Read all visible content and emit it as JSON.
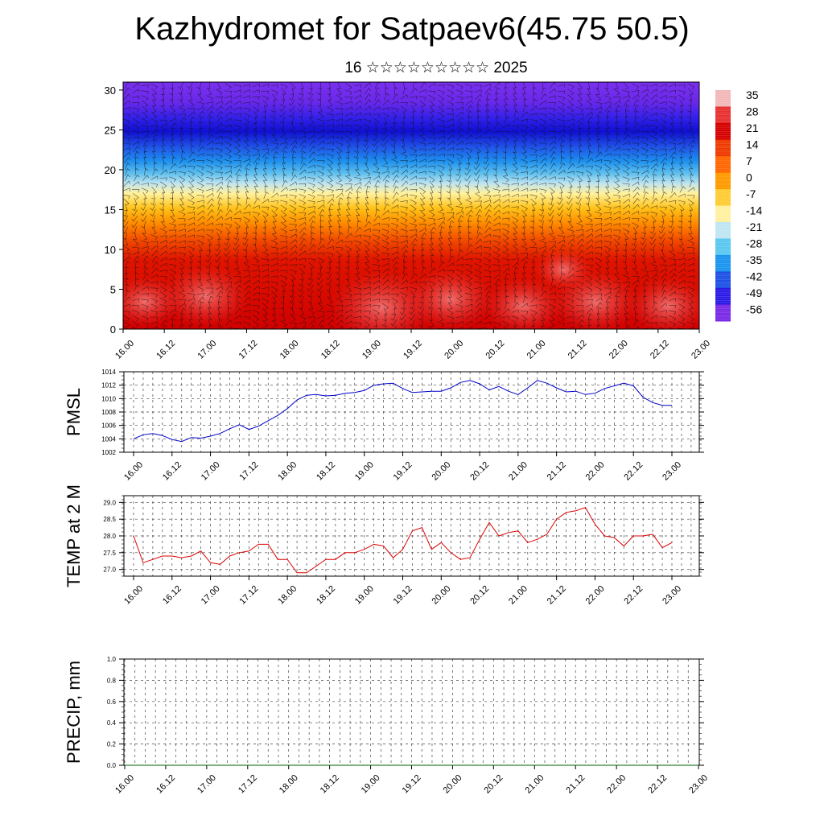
{
  "header": {
    "title": "Kazhydromet for Satpaev6(45.75 50.5)",
    "subtitle": "16 ☆☆☆☆☆☆☆☆☆ 2025"
  },
  "chart_data": [
    {
      "type": "heatmap",
      "name": "cross-section",
      "title": "",
      "x_tick_labels": [
        "16.00",
        "16.12",
        "17.00",
        "17.12",
        "18.00",
        "18.12",
        "19.00",
        "19.12",
        "20.00",
        "20.12",
        "21.00",
        "21.12",
        "22.00",
        "22.12",
        "23.00"
      ],
      "y_ticks": [
        0,
        5,
        10,
        15,
        20,
        25,
        30
      ],
      "ylim": [
        0,
        31
      ],
      "colorbar_labels": [
        "35",
        "28",
        "21",
        "14",
        "7",
        "0",
        "-7",
        "-14",
        "-21",
        "-28",
        "-35",
        "-42",
        "-49",
        "-56"
      ],
      "colorbar_colors": [
        "#f2b8b8",
        "#e83030",
        "#d60000",
        "#ee3a00",
        "#ff6600",
        "#ff9a00",
        "#ffcc33",
        "#fff0a0",
        "#bfe6f2",
        "#5ac8f0",
        "#1a94ee",
        "#1e50e6",
        "#2a1ae6",
        "#7a2ae6"
      ],
      "overlay": "wind barbs"
    },
    {
      "type": "line",
      "name": "PMSL",
      "ylabel": "PMSL",
      "x_tick_labels": [
        "16.00",
        "16.12",
        "17.00",
        "17.12",
        "18.00",
        "18.12",
        "19.00",
        "19.12",
        "20.00",
        "20.12",
        "21.00",
        "21.12",
        "22.00",
        "22.12",
        "23.00"
      ],
      "y_ticks": [
        1002,
        1004,
        1006,
        1008,
        1010,
        1012,
        1014
      ],
      "ylim": [
        1002,
        1014
      ],
      "color": "#0000cc",
      "values": [
        1004.0,
        1004.6,
        1004.8,
        1004.5,
        1003.9,
        1003.6,
        1004.2,
        1004.1,
        1004.4,
        1004.8,
        1005.5,
        1006.1,
        1005.4,
        1005.9,
        1006.7,
        1007.5,
        1008.5,
        1009.8,
        1010.5,
        1010.6,
        1010.4,
        1010.5,
        1010.8,
        1010.9,
        1011.2,
        1012.0,
        1012.2,
        1012.3,
        1011.5,
        1010.9,
        1011.0,
        1011.1,
        1011.1,
        1011.6,
        1012.4,
        1012.7,
        1012.2,
        1011.3,
        1011.8,
        1011.1,
        1010.6,
        1011.6,
        1012.7,
        1012.3,
        1011.6,
        1011.0,
        1011.1,
        1010.6,
        1010.8,
        1011.5,
        1011.9,
        1012.3,
        1011.9,
        1010.2,
        1009.4,
        1009.0,
        1009.0
      ]
    },
    {
      "type": "line",
      "name": "TEMP at 2 M",
      "ylabel": "TEMP at 2 M",
      "x_tick_labels": [
        "16.00",
        "16.12",
        "17.00",
        "17.12",
        "18.00",
        "18.12",
        "19.00",
        "19.12",
        "20.00",
        "20.12",
        "21.00",
        "21.12",
        "22.00",
        "22.12",
        "23.00"
      ],
      "y_ticks": [
        "27.0",
        "27.5",
        "28.0",
        "28.5",
        "29.0"
      ],
      "ylim": [
        26.8,
        29.2
      ],
      "color": "#dd0000",
      "values": [
        28.0,
        27.2,
        27.3,
        27.4,
        27.4,
        27.35,
        27.4,
        27.55,
        27.2,
        27.15,
        27.4,
        27.5,
        27.55,
        27.75,
        27.75,
        27.3,
        27.3,
        26.9,
        26.9,
        27.1,
        27.3,
        27.3,
        27.5,
        27.5,
        27.6,
        27.75,
        27.7,
        27.35,
        27.6,
        28.15,
        28.25,
        27.6,
        27.8,
        27.5,
        27.3,
        27.35,
        27.9,
        28.4,
        28.0,
        28.1,
        28.15,
        27.8,
        27.9,
        28.05,
        28.5,
        28.7,
        28.75,
        28.85,
        28.35,
        28.0,
        27.95,
        27.7,
        28.0,
        28.0,
        28.05,
        27.65,
        27.8
      ]
    },
    {
      "type": "line",
      "name": "PRECIP, mm",
      "ylabel": "PRECIP, mm",
      "x_tick_labels": [
        "16.00",
        "16.12",
        "17.00",
        "17.12",
        "18.00",
        "18.12",
        "19.00",
        "19.12",
        "20.00",
        "20.12",
        "21.00",
        "21.12",
        "22.00",
        "22.12",
        "23.00"
      ],
      "y_ticks": [
        "0.0",
        "0.2",
        "0.4",
        "0.6",
        "0.8",
        "1.0"
      ],
      "ylim": [
        0,
        1
      ],
      "color": "#006600",
      "values": [
        0,
        0,
        0,
        0,
        0,
        0,
        0,
        0,
        0,
        0,
        0,
        0,
        0,
        0,
        0,
        0,
        0,
        0,
        0,
        0,
        0,
        0,
        0,
        0,
        0,
        0,
        0,
        0,
        0,
        0,
        0,
        0,
        0,
        0,
        0,
        0,
        0,
        0,
        0,
        0,
        0,
        0,
        0,
        0,
        0,
        0,
        0,
        0,
        0,
        0,
        0,
        0,
        0,
        0,
        0,
        0,
        0,
        0
      ]
    }
  ]
}
